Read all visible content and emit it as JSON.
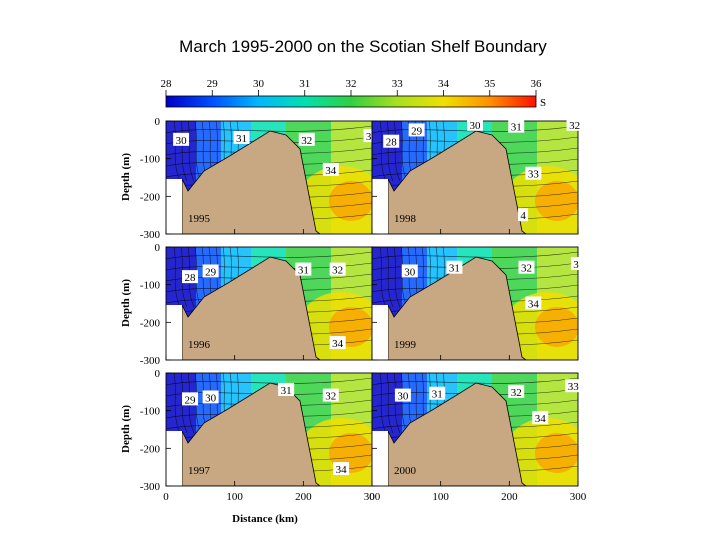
{
  "chart_data": {
    "type": "heatmap",
    "title": "March 1995-2000 on the Scotian Shelf Boundary",
    "xlabel": "Distance (km)",
    "ylabel": "Depth (m)",
    "xlim": [
      0,
      300
    ],
    "ylim": [
      0,
      -300
    ],
    "x_ticks": [
      0,
      100,
      200,
      300
    ],
    "y_ticks": [
      0,
      -100,
      -200,
      -300
    ],
    "colorbar": {
      "label": "S",
      "min": 28,
      "max": 36,
      "ticks": [
        28,
        29,
        30,
        31,
        32,
        33,
        34,
        35,
        36
      ]
    },
    "panels": [
      {
        "year": "1995",
        "contour_labels": [
          {
            "value": "30",
            "x": 22,
            "y": -50
          },
          {
            "value": "31",
            "x": 110,
            "y": -45
          },
          {
            "value": "32",
            "x": 205,
            "y": -50
          },
          {
            "value": "34",
            "x": 240,
            "y": -130
          },
          {
            "value": "3",
            "x": 295,
            "y": -40
          }
        ]
      },
      {
        "year": "1998",
        "contour_labels": [
          {
            "value": "28",
            "x": 28,
            "y": -55
          },
          {
            "value": "29",
            "x": 65,
            "y": -25
          },
          {
            "value": "30",
            "x": 150,
            "y": -10
          },
          {
            "value": "31",
            "x": 210,
            "y": -15
          },
          {
            "value": "32",
            "x": 295,
            "y": -10
          },
          {
            "value": "33",
            "x": 235,
            "y": -140
          },
          {
            "value": "4",
            "x": 220,
            "y": -250
          }
        ]
      },
      {
        "year": "1996",
        "contour_labels": [
          {
            "value": "28",
            "x": 35,
            "y": -80
          },
          {
            "value": "29",
            "x": 65,
            "y": -65
          },
          {
            "value": "31",
            "x": 200,
            "y": -60
          },
          {
            "value": "32",
            "x": 250,
            "y": -60
          },
          {
            "value": "34",
            "x": 250,
            "y": -255
          }
        ]
      },
      {
        "year": "1999",
        "contour_labels": [
          {
            "value": "30",
            "x": 55,
            "y": -65
          },
          {
            "value": "31",
            "x": 120,
            "y": -55
          },
          {
            "value": "32",
            "x": 225,
            "y": -55
          },
          {
            "value": "34",
            "x": 235,
            "y": -150
          },
          {
            "value": "3",
            "x": 297,
            "y": -45
          }
        ]
      },
      {
        "year": "1997",
        "contour_labels": [
          {
            "value": "29",
            "x": 35,
            "y": -70
          },
          {
            "value": "30",
            "x": 65,
            "y": -65
          },
          {
            "value": "31",
            "x": 175,
            "y": -45
          },
          {
            "value": "32",
            "x": 240,
            "y": -60
          },
          {
            "value": "34",
            "x": 255,
            "y": -255
          }
        ]
      },
      {
        "year": "2000",
        "contour_labels": [
          {
            "value": "30",
            "x": 45,
            "y": -60
          },
          {
            "value": "31",
            "x": 95,
            "y": -55
          },
          {
            "value": "32",
            "x": 210,
            "y": -50
          },
          {
            "value": "34",
            "x": 245,
            "y": -120
          },
          {
            "value": "33",
            "x": 293,
            "y": -35
          }
        ]
      }
    ]
  }
}
